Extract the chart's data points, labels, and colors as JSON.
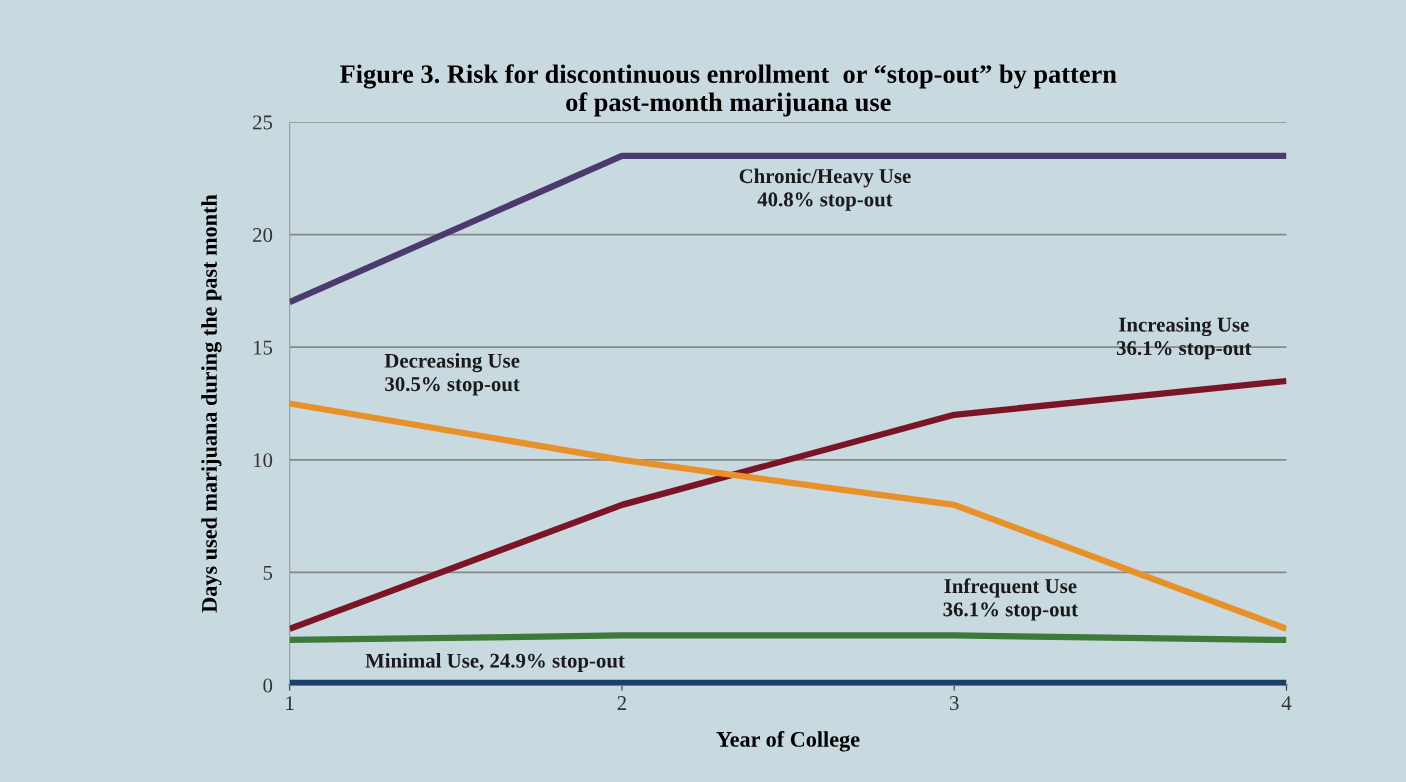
{
  "chart_data": {
    "type": "line",
    "title": "Figure 3. Risk for discontinuous enrollment  or “stop-out” by pattern\nof past-month marijuana use",
    "xlabel": "Year of College",
    "ylabel": "Days used marijuana during the past month",
    "x": [
      1,
      2,
      3,
      4
    ],
    "series": [
      {
        "name": "Chronic/Heavy Use\n40.8% stop-out",
        "color": "#4b3a6e",
        "values": [
          17,
          23.5,
          23.5,
          23.5
        ]
      },
      {
        "name": "Increasing Use\n36.1% stop-out",
        "color": "#7a1426",
        "values": [
          2.5,
          8,
          12,
          13.5
        ]
      },
      {
        "name": "Decreasing Use\n30.5% stop-out",
        "color": "#e8912a",
        "values": [
          12.5,
          10,
          8,
          2.5
        ]
      },
      {
        "name": "Infrequent Use\n36.1% stop-out",
        "color": "#3e7a3a",
        "values": [
          2,
          2.2,
          2.2,
          2
        ]
      },
      {
        "name": "Minimal Use, 24.9% stop-out",
        "color": "#1d3e6a",
        "values": [
          0.1,
          0.1,
          0.1,
          0.1
        ]
      }
    ],
    "xlim": [
      1,
      4
    ],
    "xticks": [
      1,
      2,
      3,
      4
    ],
    "ylim": [
      0,
      25
    ],
    "yticks": [
      0,
      5,
      10,
      15,
      20,
      25
    ],
    "grid": "y",
    "marker": "none",
    "line_style": "solid"
  }
}
